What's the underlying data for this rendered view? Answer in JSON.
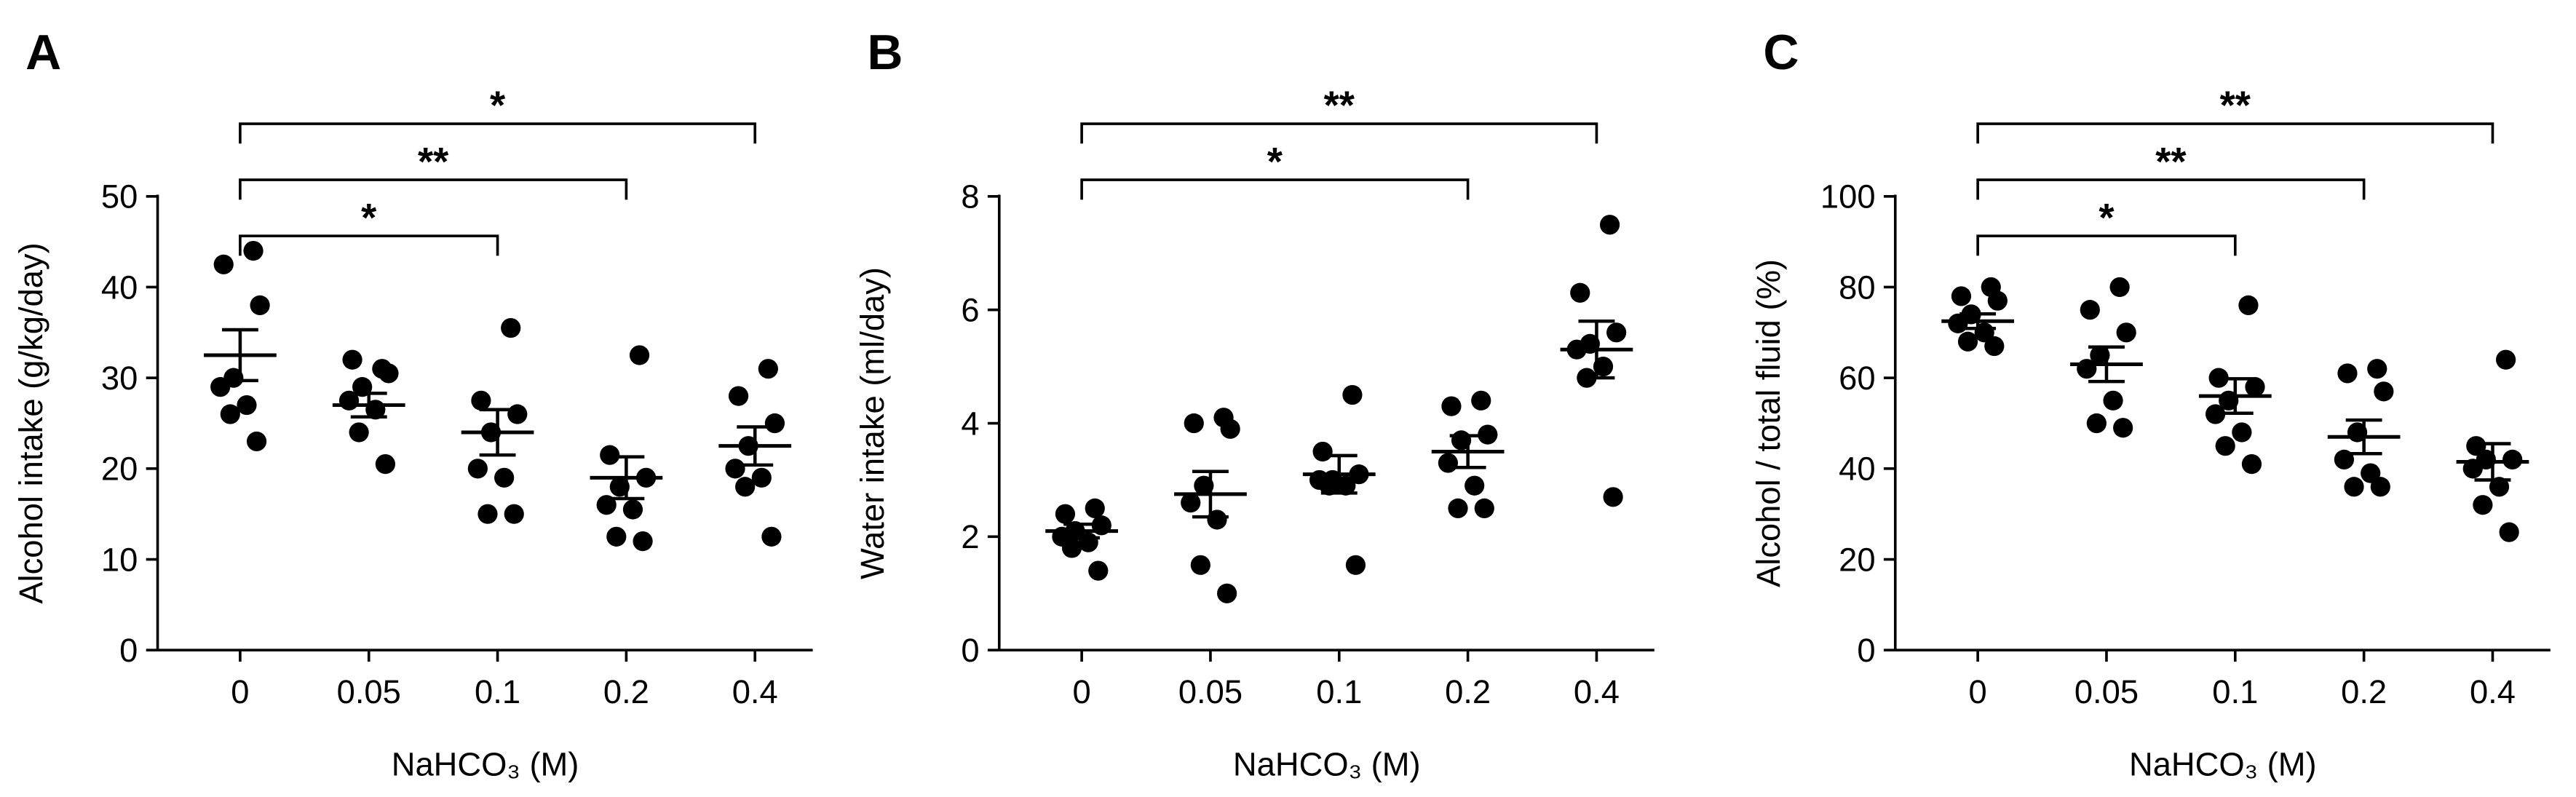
{
  "chart_data": [
    {
      "type": "scatter",
      "panel": "A",
      "ylabel": "Alcohol intake (g/kg/day)",
      "xlabel": "NaHCO₃ (M)",
      "categories": [
        "0",
        "0.05",
        "0.1",
        "0.2",
        "0.4"
      ],
      "points": [
        [
          44,
          42.5,
          38,
          30,
          29,
          27,
          26,
          23
        ],
        [
          31,
          32,
          30.5,
          29,
          27.5,
          26.5,
          24,
          20.5
        ],
        [
          35.5,
          27.5,
          26,
          24,
          20,
          19,
          15,
          15
        ],
        [
          32.5,
          21.5,
          19,
          18,
          16,
          15.5,
          12.5,
          12
        ],
        [
          31,
          28,
          25,
          22.5,
          20,
          19,
          18,
          12.5
        ]
      ],
      "means": [
        32.5,
        27,
        24,
        19,
        22.5
      ],
      "sems": [
        2.8,
        1.3,
        2.5,
        2.3,
        2.1
      ],
      "ylim": [
        0,
        50
      ],
      "yticks": [
        0,
        10,
        20,
        30,
        40,
        50
      ],
      "color": "#000000",
      "brackets": [
        {
          "from": "0",
          "to": "0.1",
          "label": "*"
        },
        {
          "from": "0",
          "to": "0.2",
          "label": "**"
        },
        {
          "from": "0",
          "to": "0.4",
          "label": "*"
        }
      ]
    },
    {
      "type": "scatter",
      "panel": "B",
      "ylabel": "Water intake (ml/day)",
      "xlabel": "NaHCO₃ (M)",
      "categories": [
        "0",
        "0.05",
        "0.1",
        "0.2",
        "0.4"
      ],
      "points": [
        [
          2.5,
          2.4,
          2.2,
          2.1,
          2.0,
          1.9,
          1.8,
          1.4
        ],
        [
          4.1,
          4.0,
          3.9,
          2.9,
          2.6,
          2.3,
          1.5,
          1.0
        ],
        [
          4.5,
          3.5,
          3.1,
          3.0,
          3.0,
          2.9,
          2.9,
          1.5
        ],
        [
          4.4,
          4.3,
          3.8,
          3.7,
          3.3,
          2.9,
          2.5,
          2.5
        ],
        [
          7.5,
          6.3,
          5.6,
          5.4,
          5.3,
          5.0,
          4.8,
          2.7
        ]
      ],
      "means": [
        2.1,
        2.75,
        3.1,
        3.5,
        5.3
      ],
      "sems": [
        0.12,
        0.4,
        0.33,
        0.28,
        0.5
      ],
      "ylim": [
        0,
        8
      ],
      "yticks": [
        0,
        2,
        4,
        6,
        8
      ],
      "color": "#000000",
      "brackets": [
        {
          "from": "0",
          "to": "0.2",
          "label": "*"
        },
        {
          "from": "0",
          "to": "0.4",
          "label": "**"
        }
      ]
    },
    {
      "type": "scatter",
      "panel": "C",
      "ylabel": "Alcohol / total fluid (%)",
      "xlabel": "NaHCO₃ (M)",
      "categories": [
        "0",
        "0.05",
        "0.1",
        "0.2",
        "0.4"
      ],
      "points": [
        [
          80,
          78,
          77,
          74,
          72,
          70,
          68,
          67
        ],
        [
          80,
          75,
          70,
          65,
          62,
          55,
          50,
          49
        ],
        [
          76,
          60,
          58,
          55,
          52,
          48,
          45,
          41
        ],
        [
          62,
          61,
          57,
          48,
          42,
          39,
          36,
          36
        ],
        [
          64,
          45,
          42,
          42,
          40,
          36,
          32,
          26
        ]
      ],
      "means": [
        72.5,
        63,
        56,
        47,
        41.5
      ],
      "sems": [
        1.6,
        3.8,
        3.8,
        3.7,
        4
      ],
      "ylim": [
        0,
        100
      ],
      "yticks": [
        0,
        20,
        40,
        60,
        80,
        100
      ],
      "color": "#000000",
      "brackets": [
        {
          "from": "0",
          "to": "0.1",
          "label": "*"
        },
        {
          "from": "0",
          "to": "0.2",
          "label": "**"
        },
        {
          "from": "0",
          "to": "0.4",
          "label": "**"
        }
      ]
    }
  ]
}
